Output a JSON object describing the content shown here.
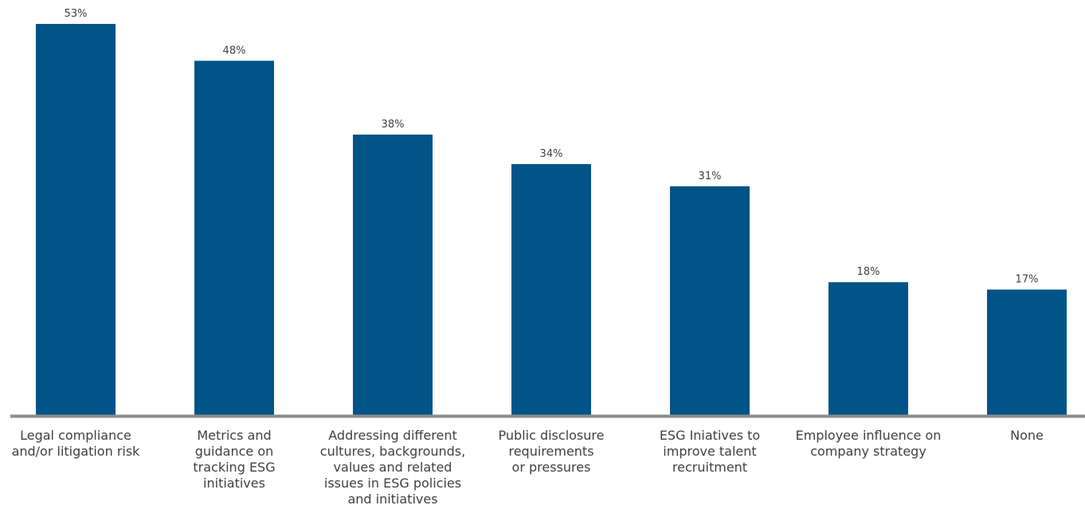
{
  "chart_data": {
    "type": "bar",
    "categories": [
      [
        "Legal compliance",
        "and/or litigation risk"
      ],
      [
        "Metrics and",
        "guidance on",
        "tracking ESG",
        "initiatives"
      ],
      [
        "Addressing different",
        "cultures, backgrounds,",
        "values and related",
        "issues in ESG policies",
        "and initiatives"
      ],
      [
        "Public disclosure",
        "requirements",
        "or pressures"
      ],
      [
        "ESG Iniatives to",
        "improve talent",
        "recruitment"
      ],
      [
        "Employee influence on",
        "company strategy"
      ],
      [
        "None"
      ]
    ],
    "values": [
      53,
      48,
      38,
      34,
      31,
      18,
      17
    ],
    "value_labels": [
      "53%",
      "48%",
      "38%",
      "34%",
      "31%",
      "18%",
      "17%"
    ],
    "unit": "%",
    "ylim": [
      0,
      53
    ],
    "grid": false,
    "legend": "none",
    "colors": {
      "bar": "#005487",
      "axis": "#8c8c8c",
      "text": "#404040"
    }
  }
}
